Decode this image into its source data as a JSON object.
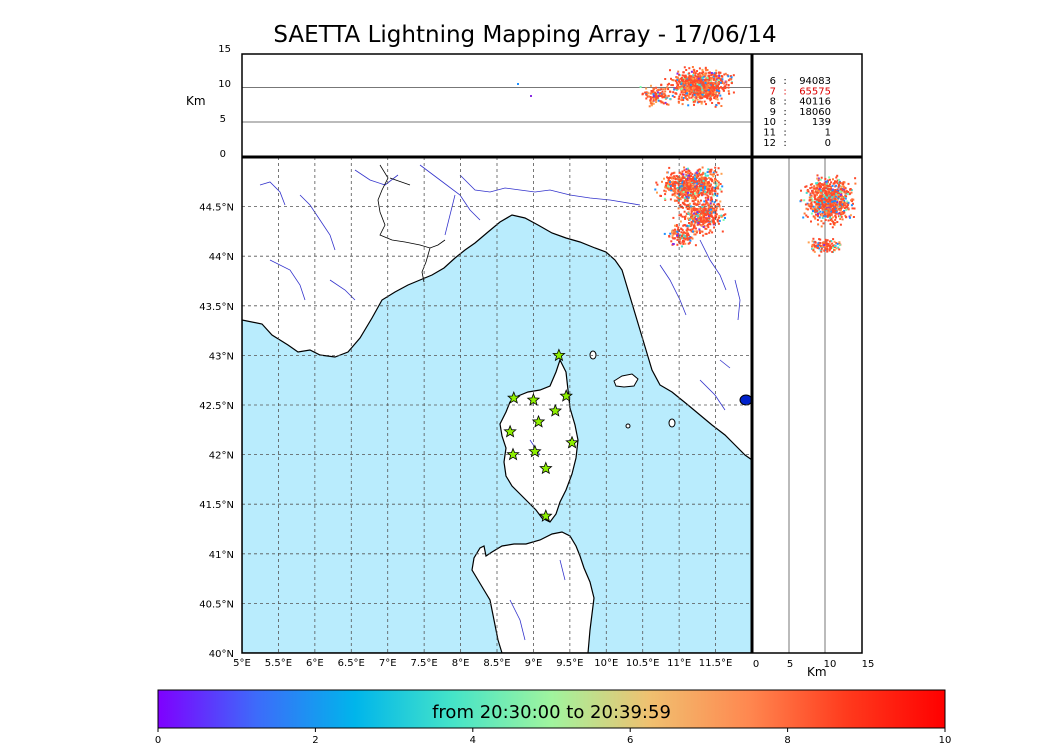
{
  "title": "SAETTA Lightning Mapping Array - 17/06/14",
  "altitude_panel": {
    "ylabel": "Km",
    "ticks": [
      "15",
      "10",
      "5",
      "0"
    ]
  },
  "side_panel": {
    "xlabel": "Km",
    "ticks": [
      "0",
      "5",
      "10",
      "15"
    ]
  },
  "map": {
    "lon_ticks": [
      "5°E",
      "5.5°E",
      "6°E",
      "6.5°E",
      "7°E",
      "7.5°E",
      "8°E",
      "8.5°E",
      "9°E",
      "9.5°E",
      "10°E",
      "10.5°E",
      "11°E",
      "11.5°E"
    ],
    "lat_ticks": [
      "44.5°N",
      "44°N",
      "43.5°N",
      "43°N",
      "42.5°N",
      "42°N",
      "41.5°N",
      "41°N",
      "40.5°N",
      "40°N"
    ],
    "colors": {
      "sea": "#b9ecfd",
      "land": "#ffffff",
      "rivers": "#3333cc",
      "coast": "#000000",
      "grid": "#555555"
    },
    "stations": [
      {
        "lon": 9.35,
        "lat": 43.0
      },
      {
        "lon": 8.73,
        "lat": 42.57
      },
      {
        "lon": 9.0,
        "lat": 42.55
      },
      {
        "lon": 9.45,
        "lat": 42.59
      },
      {
        "lon": 9.07,
        "lat": 42.33
      },
      {
        "lon": 9.3,
        "lat": 42.44
      },
      {
        "lon": 8.68,
        "lat": 42.23
      },
      {
        "lon": 8.72,
        "lat": 42.0
      },
      {
        "lon": 9.02,
        "lat": 42.03
      },
      {
        "lon": 9.53,
        "lat": 42.12
      },
      {
        "lon": 9.17,
        "lat": 41.86
      },
      {
        "lon": 9.17,
        "lat": 41.38
      }
    ],
    "station_color": "#8ef000"
  },
  "stats": [
    {
      "label": "6",
      "value": "94083",
      "color": "#000000"
    },
    {
      "label": "7",
      "value": "65575",
      "color": "#dd0000"
    },
    {
      "label": "8",
      "value": "40116",
      "color": "#000000"
    },
    {
      "label": "9",
      "value": "18060",
      "color": "#000000"
    },
    {
      "label": "10",
      "value": "139",
      "color": "#000000"
    },
    {
      "label": "11",
      "value": "1",
      "color": "#000000"
    },
    {
      "label": "12",
      "value": "0",
      "color": "#000000"
    }
  ],
  "colorbar": {
    "label": "from 20:30:00 to 20:39:59",
    "ticks": [
      "0",
      "2",
      "4",
      "6",
      "8",
      "10"
    ],
    "gradient": [
      "#7f00ff",
      "#3d6bfa",
      "#00b5eb",
      "#45e4c8",
      "#a0f49e",
      "#f0c070",
      "#ff8850",
      "#ff3a1d",
      "#ff0000"
    ]
  }
}
